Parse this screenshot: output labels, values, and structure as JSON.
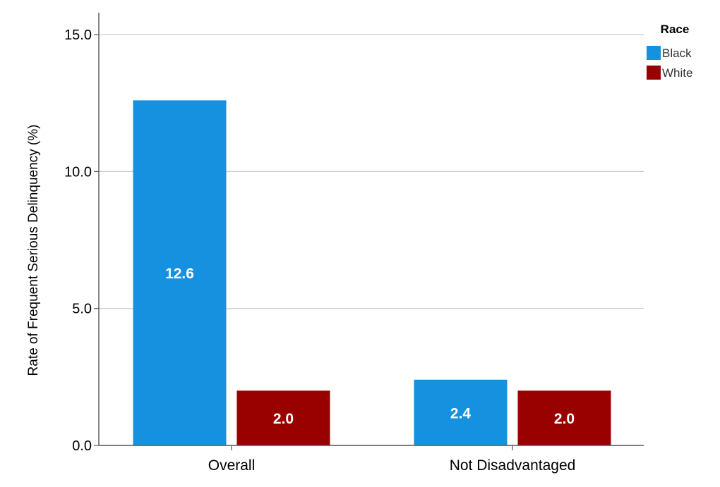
{
  "chart_data": {
    "type": "bar",
    "title": "",
    "xlabel": "",
    "ylabel": "Rate of Frequent Serious Delinquency (%)",
    "categories": [
      "Overall",
      "Not Disadvantaged"
    ],
    "series": [
      {
        "name": "Black",
        "values": [
          12.6,
          2.4
        ],
        "color": "#1691e0"
      },
      {
        "name": "White",
        "values": [
          2.0,
          2.0
        ],
        "color": "#990000"
      }
    ],
    "data_labels": [
      [
        "12.6",
        "2.4"
      ],
      [
        "2.0",
        "2.0"
      ]
    ],
    "ylim": [
      0,
      15.8
    ],
    "yticks": [
      0.0,
      5.0,
      10.0,
      15.0
    ],
    "ytick_labels": [
      "0.0",
      "5.0",
      "10.0",
      "15.0"
    ],
    "grid": true,
    "legend": {
      "title": "Race",
      "placement": "top-right",
      "entries": [
        "Black",
        "White"
      ]
    },
    "colors": {
      "gridline": "#c8c8c8",
      "axis": "#555555"
    }
  }
}
